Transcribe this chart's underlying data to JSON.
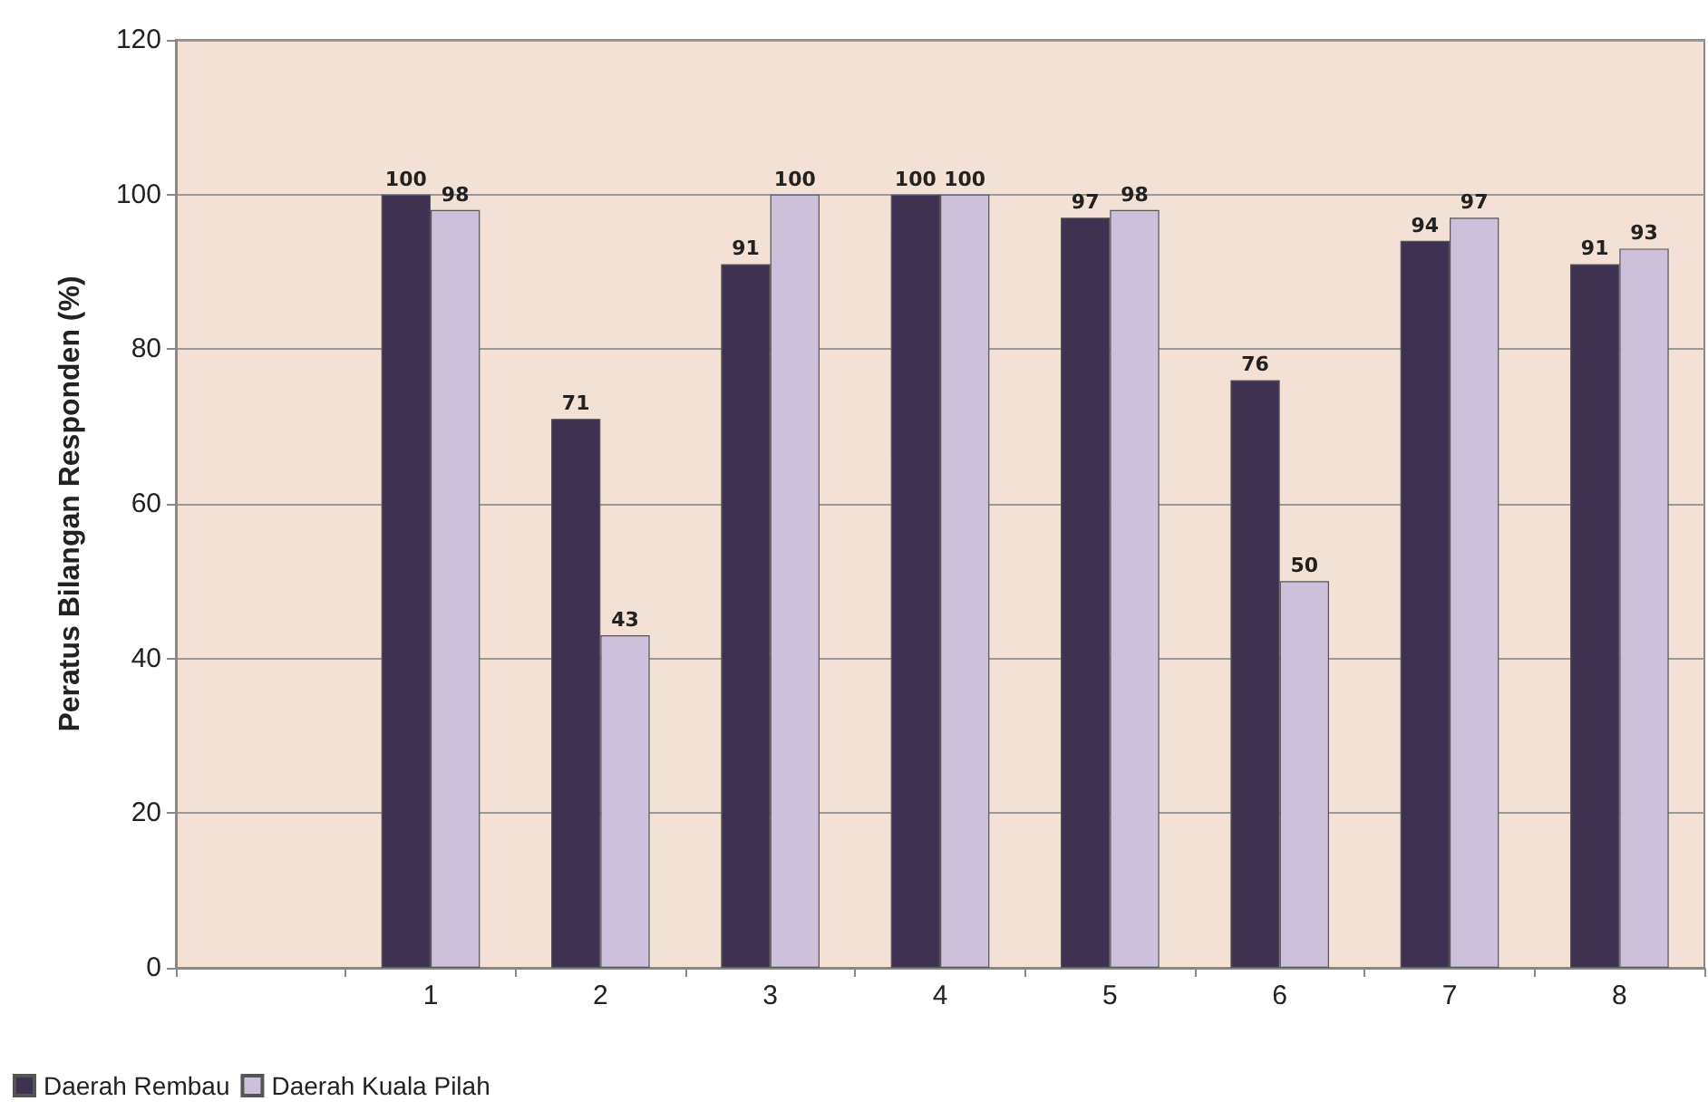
{
  "chart_data": {
    "type": "bar",
    "ylabel": "Peratus Bilangan Responden (%)",
    "categories": [
      null,
      "1",
      "2",
      "3",
      "4",
      "5",
      "6",
      "7",
      "8"
    ],
    "series": [
      {
        "name": "Daerah Rembau",
        "color": "#3f3151",
        "values": [
          null,
          100,
          71,
          91,
          100,
          97,
          76,
          94,
          91
        ]
      },
      {
        "name": "Daerah Kuala Pilah",
        "color": "#ccc0da",
        "values": [
          null,
          98,
          43,
          100,
          100,
          98,
          50,
          97,
          93
        ]
      }
    ],
    "ylim": [
      0,
      120
    ],
    "yticks": [
      0,
      20,
      40,
      60,
      80,
      100,
      120
    ],
    "grid": "y",
    "legend": "bottom left",
    "data_labels": true
  }
}
